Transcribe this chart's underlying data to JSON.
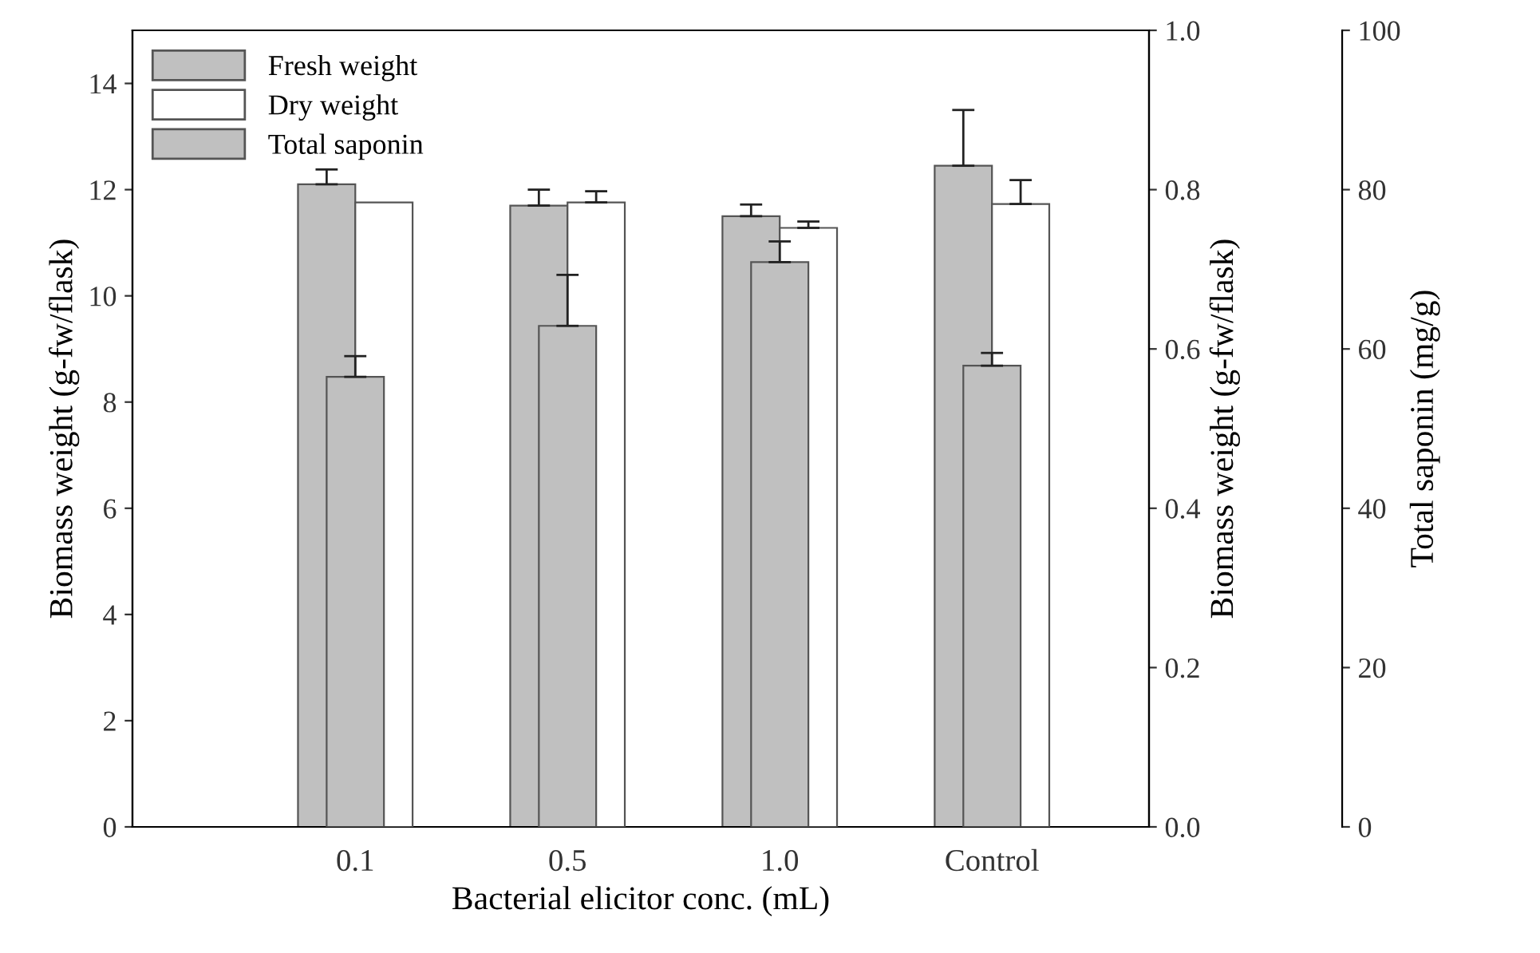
{
  "chart_data": {
    "type": "bar",
    "xlabel": "Bacterial elicitor conc. (mL)",
    "ylabel": "Biomass weight (g-fw/flask)",
    "y2label": "Biomass weight (g-fw/flask)",
    "y3label": "Total saponin (mg/g)",
    "categories": [
      "0.1",
      "0.5",
      "1.0",
      "Control"
    ],
    "series": [
      {
        "name": "Fresh weight",
        "color": "#c0c0c0",
        "values": [
          12.1,
          11.7,
          11.5,
          12.45
        ],
        "errors": [
          [
            12.1,
            12.38
          ],
          [
            11.7,
            12.0
          ],
          [
            11.5,
            11.72
          ],
          [
            12.45,
            13.5
          ]
        ]
      },
      {
        "name": "Dry weight",
        "color": "#ffffff",
        "axis": "y2",
        "values": [
          0.784,
          0.784,
          0.752,
          0.782
        ],
        "errors": [
          null,
          [
            0.784,
            0.798
          ],
          [
            0.752,
            0.76
          ],
          [
            0.782,
            0.812
          ]
        ]
      },
      {
        "name": "Total saponin",
        "color": "#c0c0c0",
        "axis": "y3",
        "values": [
          56.5,
          62.9,
          70.9,
          57.9
        ],
        "errors": [
          [
            56.5,
            59.1
          ],
          [
            62.9,
            69.3
          ],
          [
            70.9,
            73.5
          ],
          [
            57.9,
            59.5
          ]
        ]
      }
    ],
    "ylim": [
      0,
      15
    ],
    "yticks": [
      0,
      2,
      4,
      6,
      8,
      10,
      12,
      14
    ],
    "y2lim": [
      0,
      1.0
    ],
    "y2ticks": [
      {
        "value": 0,
        "label": "0.0"
      },
      0.2,
      0.4,
      0.6,
      0.8,
      {
        "value": 1.0,
        "label": "1.0"
      }
    ],
    "y3lim": [
      0,
      100
    ],
    "y3ticks": [
      0,
      20,
      40,
      60,
      80,
      100
    ],
    "legend": "top left",
    "grid": false
  }
}
